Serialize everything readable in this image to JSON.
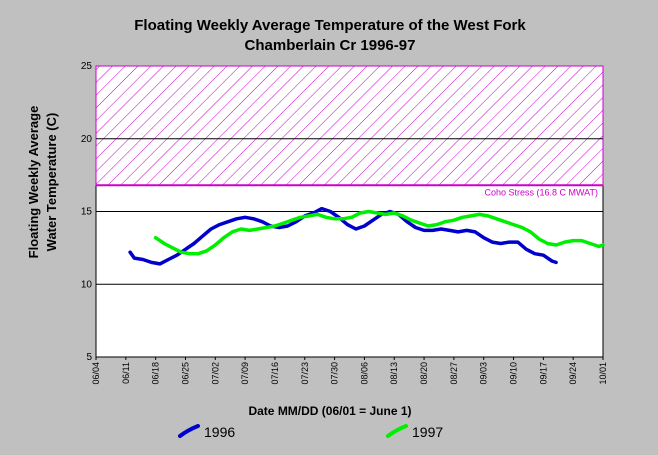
{
  "chart_data": {
    "type": "line",
    "title_lines": [
      "Floating Weekly Average Temperature of the West Fork",
      "Chamberlain Cr 1996-97"
    ],
    "ylabel_lines": [
      "Floating Weekly Average",
      "Water Temperature (C)"
    ],
    "xlabel": "Date MM/DD (06/01 = June 1)",
    "x_ticks": [
      "06/04",
      "06/11",
      "06/18",
      "06/25",
      "07/02",
      "07/09",
      "07/16",
      "07/23",
      "07/30",
      "08/06",
      "08/13",
      "08/20",
      "08/27",
      "09/03",
      "09/10",
      "09/17",
      "09/24",
      "10/01"
    ],
    "y_ticks": [
      5,
      10,
      15,
      20,
      25
    ],
    "ylim": [
      5,
      25
    ],
    "grid_y": [
      10,
      15,
      20
    ],
    "band": {
      "from": 16.8,
      "to": 25,
      "label": "Coho Stress (16.8 C MWAT)",
      "color": "#cc00cc"
    },
    "series": [
      {
        "name": "1996",
        "color": "#0000cc",
        "points": [
          [
            "06/12",
            12.2
          ],
          [
            "06/13",
            11.8
          ],
          [
            "06/15",
            11.7
          ],
          [
            "06/17",
            11.5
          ],
          [
            "06/19",
            11.4
          ],
          [
            "06/21",
            11.7
          ],
          [
            "06/23",
            12.0
          ],
          [
            "06/25",
            12.4
          ],
          [
            "06/27",
            12.8
          ],
          [
            "06/29",
            13.3
          ],
          [
            "07/01",
            13.8
          ],
          [
            "07/03",
            14.1
          ],
          [
            "07/05",
            14.3
          ],
          [
            "07/07",
            14.5
          ],
          [
            "07/09",
            14.6
          ],
          [
            "07/11",
            14.5
          ],
          [
            "07/13",
            14.3
          ],
          [
            "07/15",
            14.0
          ],
          [
            "07/17",
            13.9
          ],
          [
            "07/19",
            14.0
          ],
          [
            "07/21",
            14.3
          ],
          [
            "07/23",
            14.7
          ],
          [
            "07/25",
            14.9
          ],
          [
            "07/27",
            15.2
          ],
          [
            "07/29",
            15.0
          ],
          [
            "07/31",
            14.6
          ],
          [
            "08/02",
            14.1
          ],
          [
            "08/04",
            13.8
          ],
          [
            "08/06",
            14.0
          ],
          [
            "08/08",
            14.4
          ],
          [
            "08/10",
            14.8
          ],
          [
            "08/12",
            15.0
          ],
          [
            "08/14",
            14.8
          ],
          [
            "08/16",
            14.3
          ],
          [
            "08/18",
            13.9
          ],
          [
            "08/20",
            13.7
          ],
          [
            "08/22",
            13.7
          ],
          [
            "08/24",
            13.8
          ],
          [
            "08/26",
            13.7
          ],
          [
            "08/28",
            13.6
          ],
          [
            "08/30",
            13.7
          ],
          [
            "09/01",
            13.6
          ],
          [
            "09/03",
            13.2
          ],
          [
            "09/05",
            12.9
          ],
          [
            "09/07",
            12.8
          ],
          [
            "09/09",
            12.9
          ],
          [
            "09/11",
            12.9
          ],
          [
            "09/13",
            12.4
          ],
          [
            "09/15",
            12.1
          ],
          [
            "09/17",
            12.0
          ],
          [
            "09/19",
            11.6
          ],
          [
            "09/20",
            11.5
          ]
        ]
      },
      {
        "name": "1997",
        "color": "#00ee00",
        "points": [
          [
            "06/18",
            13.2
          ],
          [
            "06/20",
            12.8
          ],
          [
            "06/22",
            12.5
          ],
          [
            "06/24",
            12.2
          ],
          [
            "06/26",
            12.1
          ],
          [
            "06/28",
            12.1
          ],
          [
            "06/30",
            12.3
          ],
          [
            "07/02",
            12.7
          ],
          [
            "07/04",
            13.2
          ],
          [
            "07/06",
            13.6
          ],
          [
            "07/08",
            13.8
          ],
          [
            "07/10",
            13.7
          ],
          [
            "07/12",
            13.8
          ],
          [
            "07/14",
            13.9
          ],
          [
            "07/16",
            14.0
          ],
          [
            "07/18",
            14.2
          ],
          [
            "07/20",
            14.4
          ],
          [
            "07/22",
            14.6
          ],
          [
            "07/24",
            14.7
          ],
          [
            "07/26",
            14.8
          ],
          [
            "07/28",
            14.6
          ],
          [
            "07/30",
            14.5
          ],
          [
            "08/01",
            14.5
          ],
          [
            "08/03",
            14.6
          ],
          [
            "08/05",
            14.9
          ],
          [
            "08/07",
            15.0
          ],
          [
            "08/09",
            14.9
          ],
          [
            "08/11",
            14.8
          ],
          [
            "08/13",
            14.9
          ],
          [
            "08/15",
            14.7
          ],
          [
            "08/17",
            14.4
          ],
          [
            "08/19",
            14.2
          ],
          [
            "08/21",
            14.0
          ],
          [
            "08/23",
            14.1
          ],
          [
            "08/25",
            14.3
          ],
          [
            "08/27",
            14.4
          ],
          [
            "08/29",
            14.6
          ],
          [
            "08/31",
            14.7
          ],
          [
            "09/02",
            14.8
          ],
          [
            "09/04",
            14.7
          ],
          [
            "09/06",
            14.5
          ],
          [
            "09/08",
            14.3
          ],
          [
            "09/10",
            14.1
          ],
          [
            "09/12",
            13.9
          ],
          [
            "09/14",
            13.6
          ],
          [
            "09/16",
            13.1
          ],
          [
            "09/18",
            12.8
          ],
          [
            "09/20",
            12.7
          ],
          [
            "09/22",
            12.9
          ],
          [
            "09/24",
            13.0
          ],
          [
            "09/26",
            13.0
          ],
          [
            "09/28",
            12.8
          ],
          [
            "09/30",
            12.6
          ],
          [
            "10/01",
            12.7
          ]
        ]
      }
    ],
    "legend_placement": "bottom"
  }
}
